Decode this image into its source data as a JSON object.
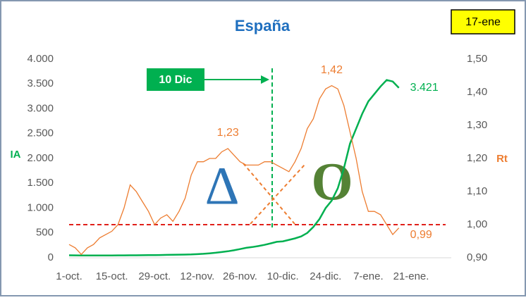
{
  "chart_data": {
    "type": "line",
    "title": "España",
    "date_box": "17-ene",
    "y_label": "IA",
    "y2_label": "Rt",
    "marker_label": "10 Dic",
    "symbols": [
      "Δ",
      "O"
    ],
    "categories": [
      "1-oct.",
      null,
      null,
      null,
      null,
      null,
      null,
      "15-oct.",
      null,
      null,
      null,
      null,
      null,
      null,
      "29-oct.",
      null,
      null,
      null,
      null,
      null,
      null,
      "12-nov.",
      null,
      null,
      null,
      null,
      null,
      null,
      "26-nov.",
      null,
      null,
      null,
      null,
      null,
      null,
      "10-dic.",
      null,
      null,
      null,
      null,
      null,
      null,
      "24-dic.",
      null,
      null,
      null,
      null,
      null,
      null,
      "7-ene.",
      null,
      null,
      null,
      null,
      null,
      null,
      "21-ene."
    ],
    "ylim": [
      0,
      4000
    ],
    "yticks": [
      0,
      500,
      {
        "value": 1000,
        "label": "1.000"
      },
      {
        "value": 1500,
        "label": "1.500"
      },
      {
        "value": 2000,
        "label": "2.000"
      },
      {
        "value": 2500,
        "label": "2.500"
      },
      {
        "value": 3000,
        "label": "3.000"
      },
      {
        "value": 3500,
        "label": "3.500"
      },
      {
        "value": 4000,
        "label": "4.000"
      }
    ],
    "y2lim": [
      0.9,
      1.5
    ],
    "y2ticks": [
      {
        "value": 0.9,
        "label": "0,90"
      },
      {
        "value": 1.0,
        "label": "1,00"
      },
      {
        "value": 1.1,
        "label": "1,10"
      },
      {
        "value": 1.2,
        "label": "1,20"
      },
      {
        "value": 1.3,
        "label": "1,30"
      },
      {
        "value": 1.4,
        "label": "1,40"
      },
      {
        "value": 1.5,
        "label": "1,50"
      }
    ],
    "ref_line": {
      "axis": "y2",
      "value": 1.0,
      "color": "#e0201b"
    },
    "series": [
      {
        "color": "#00b050",
        "axis": "y",
        "values": [
          50,
          48,
          45,
          45,
          45,
          45,
          46,
          47,
          48,
          48,
          49,
          50,
          51,
          52,
          54,
          56,
          58,
          60,
          62,
          64,
          67,
          72,
          80,
          90,
          100,
          115,
          130,
          150,
          175,
          200,
          215,
          235,
          260,
          290,
          320,
          330,
          360,
          390,
          430,
          500,
          620,
          780,
          1000,
          1150,
          1400,
          1800,
          2300,
          2600,
          2900,
          3150,
          3300,
          3450,
          3580,
          3550,
          3421,
          null,
          null
        ],
        "value_labels": [
          null,
          null,
          null,
          null,
          null,
          null,
          null,
          null,
          null,
          null,
          null,
          null,
          null,
          null,
          null,
          null,
          null,
          null,
          null,
          null,
          null,
          null,
          null,
          null,
          null,
          null,
          null,
          null,
          null,
          null,
          null,
          null,
          null,
          null,
          null,
          null,
          null,
          null,
          null,
          null,
          null,
          null,
          null,
          null,
          null,
          null,
          null,
          null,
          null,
          null,
          null,
          null,
          null,
          null,
          "3.421",
          null,
          null
        ]
      },
      {
        "color": "#ed7d31",
        "axis": "y2",
        "values": [
          0.94,
          0.93,
          0.91,
          0.93,
          0.94,
          0.96,
          0.97,
          0.98,
          1.0,
          1.05,
          1.12,
          1.1,
          1.07,
          1.04,
          1.0,
          1.02,
          1.03,
          1.01,
          1.04,
          1.08,
          1.15,
          1.19,
          1.19,
          1.2,
          1.2,
          1.22,
          1.23,
          1.21,
          1.19,
          1.18,
          1.18,
          1.18,
          1.19,
          1.19,
          1.18,
          1.17,
          1.16,
          1.19,
          1.23,
          1.29,
          1.32,
          1.38,
          1.41,
          1.42,
          1.41,
          1.36,
          1.28,
          1.2,
          1.1,
          1.04,
          1.04,
          1.03,
          1.0,
          0.97,
          0.99,
          null,
          null
        ],
        "value_labels": [
          null,
          null,
          null,
          null,
          null,
          null,
          null,
          null,
          null,
          null,
          null,
          null,
          null,
          null,
          null,
          null,
          null,
          null,
          null,
          null,
          null,
          null,
          null,
          null,
          null,
          null,
          "1,23",
          null,
          null,
          null,
          null,
          null,
          null,
          null,
          null,
          null,
          null,
          null,
          null,
          null,
          null,
          null,
          null,
          "1,42",
          null,
          null,
          null,
          null,
          null,
          null,
          null,
          null,
          null,
          null,
          "0,99",
          null,
          null
        ]
      }
    ]
  }
}
